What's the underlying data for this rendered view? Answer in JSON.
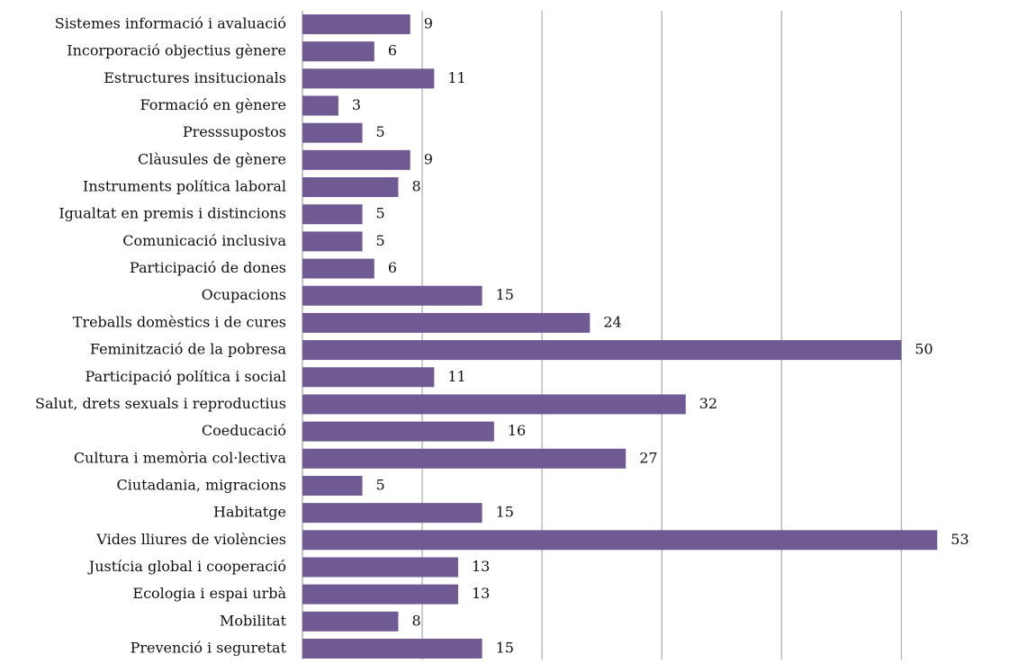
{
  "chart_data": {
    "type": "bar",
    "orientation": "horizontal",
    "categories": [
      "Sistemes informació i avaluació",
      "Incorporació objectius gènere",
      "Estructures insitucionals",
      "Formació en gènere",
      "Presssupostos ",
      "Clàusules de gènere",
      "Instruments política laboral",
      "Igualtat en premis i distincions",
      "Comunicació inclusiva",
      "Participació de dones",
      "Ocupacions",
      "Treballs domèstics i de cures",
      "Feminització de la pobresa ",
      "Participació política i social",
      "Salut, drets sexuals i reproductius",
      "Coeducació",
      "Cultura i memòria col·lectiva",
      "Ciutadania, migracions",
      "Habitatge",
      "Vides lliures de violències",
      "Justícia global i cooperació",
      "Ecologia i espai urbà",
      "Mobilitat",
      "Prevenció i seguretat"
    ],
    "values": [
      9,
      6,
      11,
      3,
      5,
      9,
      8,
      5,
      5,
      6,
      15,
      24,
      50,
      11,
      32,
      16,
      27,
      5,
      15,
      53,
      13,
      13,
      8,
      15
    ],
    "color": "#6f5a94",
    "xlim": [
      0,
      59
    ],
    "xticks": [
      0,
      10,
      20,
      30,
      40,
      50
    ],
    "grid": true
  }
}
